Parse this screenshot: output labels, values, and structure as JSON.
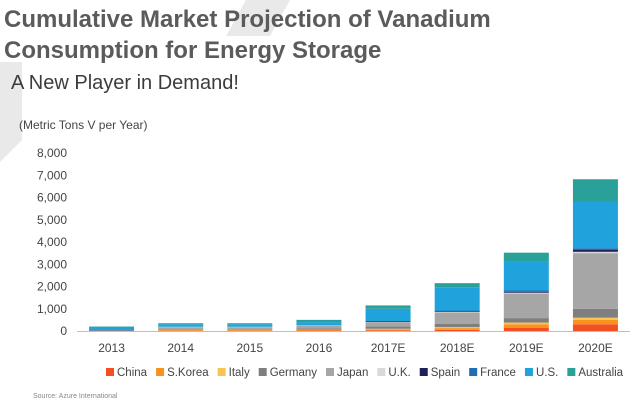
{
  "header": {
    "title_line1": "Cumulative Market Projection of Vanadium",
    "title_line2": "Consumption for Energy Storage",
    "subtitle": "A New Player in Demand!",
    "unit_label": "(Metric Tons V per Year)"
  },
  "footer": {
    "source": "Source: Azure International"
  },
  "chart_data": {
    "type": "bar",
    "stacked": true,
    "categories": [
      "2013",
      "2014",
      "2015",
      "2016",
      "2017E",
      "2018E",
      "2019E",
      "2020E"
    ],
    "ylabel": "(Metric Tons V per Year)",
    "ylim": [
      0,
      8000
    ],
    "yticks": [
      0,
      1000,
      2000,
      3000,
      4000,
      5000,
      6000,
      7000,
      8000
    ],
    "ytick_labels": [
      "0",
      "1,000",
      "2,000",
      "3,000",
      "4,000",
      "5,000",
      "6,000",
      "7,000",
      "8,000"
    ],
    "grid": false,
    "legend": "bottom",
    "series": [
      {
        "name": "China",
        "color": "#f25022",
        "values": [
          20,
          20,
          20,
          20,
          30,
          50,
          150,
          300
        ]
      },
      {
        "name": "S.Korea",
        "color": "#f7931e",
        "values": [
          0,
          20,
          20,
          30,
          40,
          80,
          150,
          200
        ]
      },
      {
        "name": "Italy",
        "color": "#f6c356",
        "values": [
          0,
          10,
          10,
          10,
          30,
          50,
          80,
          100
        ]
      },
      {
        "name": "Germany",
        "color": "#7f7f7f",
        "values": [
          0,
          30,
          30,
          60,
          100,
          150,
          200,
          400
        ]
      },
      {
        "name": "Japan",
        "color": "#a6a6a6",
        "values": [
          0,
          100,
          100,
          120,
          200,
          500,
          1100,
          2500
        ]
      },
      {
        "name": "U.K.",
        "color": "#d9d9d9",
        "values": [
          0,
          10,
          10,
          10,
          20,
          30,
          40,
          60
        ]
      },
      {
        "name": "Spain",
        "color": "#1f1f5a",
        "values": [
          0,
          0,
          0,
          0,
          10,
          20,
          40,
          80
        ]
      },
      {
        "name": "France",
        "color": "#1f6fb5",
        "values": [
          0,
          0,
          0,
          0,
          20,
          40,
          60,
          80
        ]
      },
      {
        "name": "U.S.",
        "color": "#20a3dd",
        "values": [
          160,
          110,
          110,
          150,
          550,
          1050,
          1300,
          2100
        ]
      },
      {
        "name": "Australia",
        "color": "#2aa198",
        "values": [
          20,
          50,
          50,
          100,
          150,
          180,
          400,
          1000
        ]
      }
    ]
  }
}
